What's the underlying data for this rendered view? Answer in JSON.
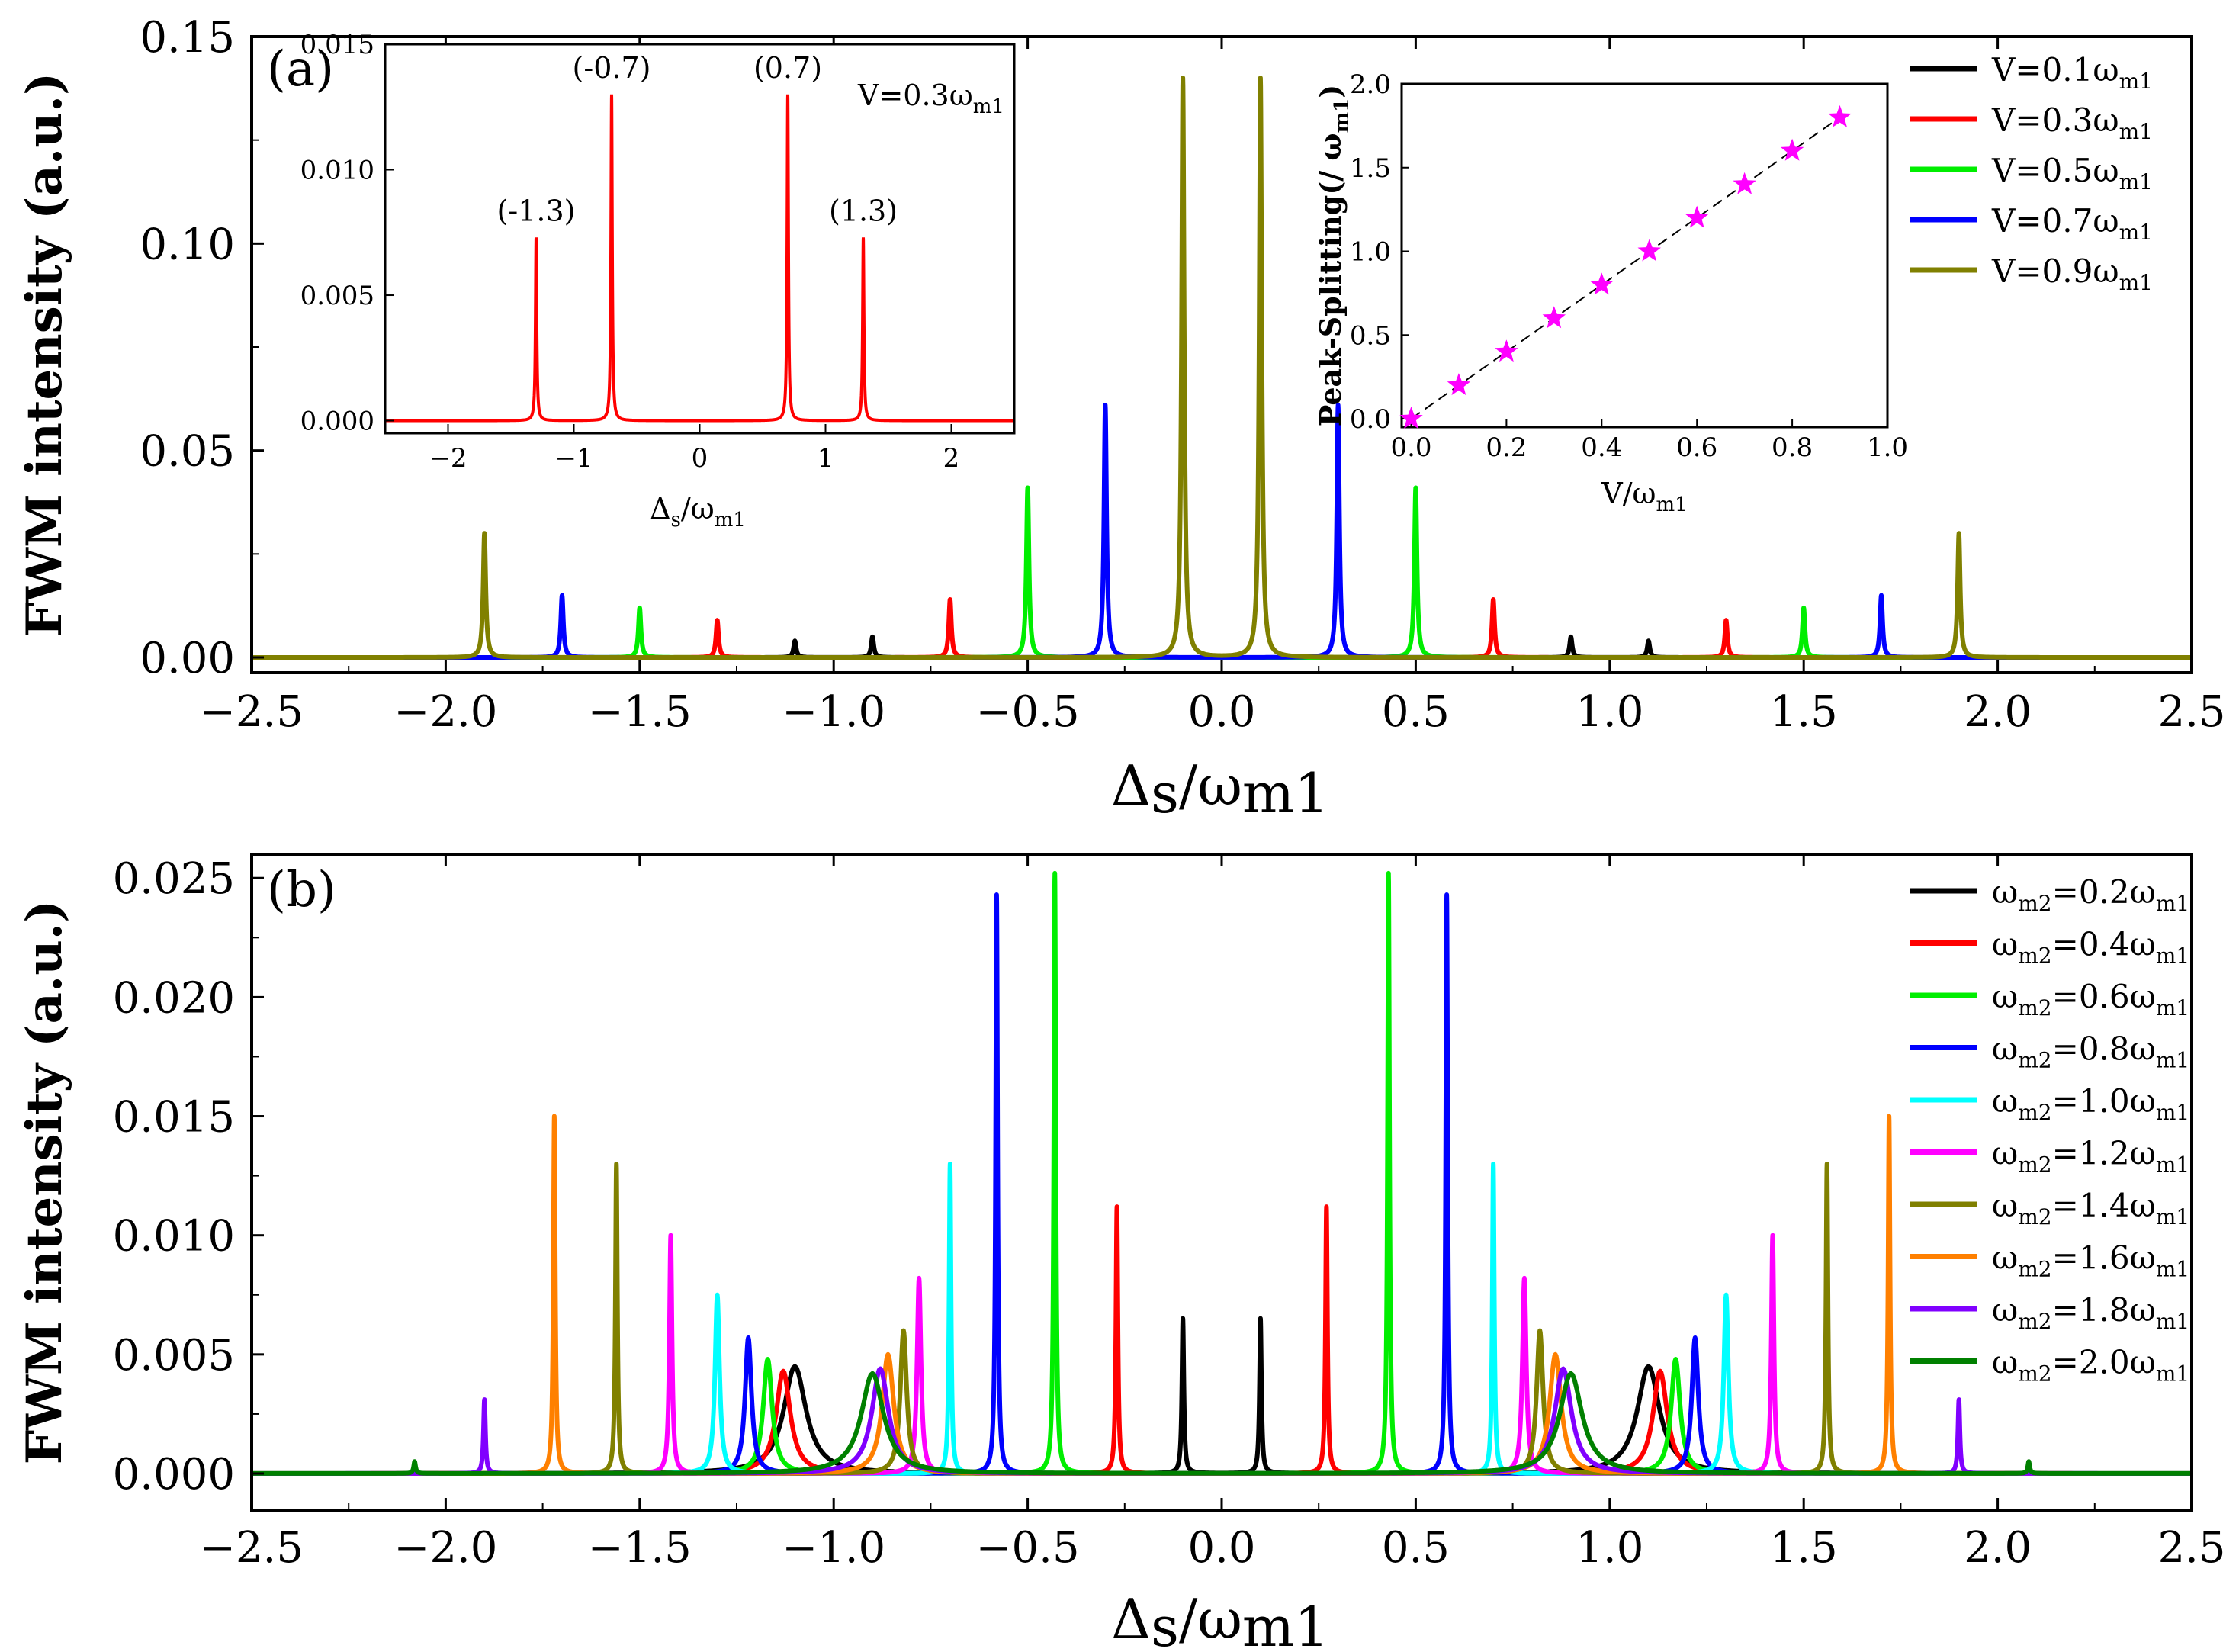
{
  "chart_data": [
    {
      "panel_label": "(a)",
      "type": "line",
      "title": "",
      "xlabel": {
        "main": "Δ",
        "sub1": "s",
        "mid": "/ω",
        "sub2": "m1"
      },
      "ylabel": "FWM intensity (a.u.)",
      "xlim": [
        -2.5,
        2.5
      ],
      "ylim": [
        0,
        0.15
      ],
      "xticks": [
        "-2.5",
        "-2.0",
        "-1.5",
        "-1.0",
        "-0.5",
        "0.0",
        "0.5",
        "1.0",
        "1.5",
        "2.0",
        "2.5"
      ],
      "yticks": [
        "0.00",
        "0.05",
        "0.10",
        "0.15"
      ],
      "legend_position": "top-right",
      "series": [
        {
          "name": "V=0.1ω_m1",
          "label_main": "V=0.1ω",
          "label_sub": "m1",
          "color": "#000000",
          "peaks": [
            {
              "x": -1.1,
              "y": 0.004
            },
            {
              "x": -0.9,
              "y": 0.005
            },
            {
              "x": 0.9,
              "y": 0.005
            },
            {
              "x": 1.1,
              "y": 0.004
            }
          ]
        },
        {
          "name": "V=0.3ω_m1",
          "label_main": "V=0.3ω",
          "label_sub": "m1",
          "color": "#ff0000",
          "peaks": [
            {
              "x": -1.3,
              "y": 0.009
            },
            {
              "x": -0.7,
              "y": 0.014
            },
            {
              "x": 0.7,
              "y": 0.014
            },
            {
              "x": 1.3,
              "y": 0.009
            }
          ]
        },
        {
          "name": "V=0.5ω_m1",
          "label_main": "V=0.5ω",
          "label_sub": "m1",
          "color": "#00ee00",
          "peaks": [
            {
              "x": -1.5,
              "y": 0.012
            },
            {
              "x": -0.5,
              "y": 0.041
            },
            {
              "x": 0.5,
              "y": 0.041
            },
            {
              "x": 1.5,
              "y": 0.012
            }
          ]
        },
        {
          "name": "V=0.7ω_m1",
          "label_main": "V=0.7ω",
          "label_sub": "m1",
          "color": "#0000ff",
          "peaks": [
            {
              "x": -1.7,
              "y": 0.015
            },
            {
              "x": -0.3,
              "y": 0.061
            },
            {
              "x": 0.3,
              "y": 0.061
            },
            {
              "x": 1.7,
              "y": 0.015
            }
          ]
        },
        {
          "name": "V=0.9ω_m1",
          "label_main": "V=0.9ω",
          "label_sub": "m1",
          "color": "#808000",
          "peaks": [
            {
              "x": -1.9,
              "y": 0.03
            },
            {
              "x": -0.1,
              "y": 0.14
            },
            {
              "x": 0.1,
              "y": 0.14
            },
            {
              "x": 1.9,
              "y": 0.03
            }
          ]
        }
      ],
      "insets": [
        {
          "type": "line",
          "xlabel": {
            "main": "Δ",
            "sub1": "s",
            "mid": "/ω",
            "sub2": "m1"
          },
          "xlim": [
            -2.5,
            2.5
          ],
          "ylim": [
            -0.0005,
            0.015
          ],
          "xticks": [
            "-2",
            "-1",
            "0",
            "1",
            "2"
          ],
          "yticks": [
            "0.000",
            "0.005",
            "0.010",
            "0.015"
          ],
          "annotation_main": "V=0.3ω",
          "annotation_sub": "m1",
          "color": "#ff0000",
          "peaks": [
            {
              "x": -1.3,
              "y": 0.0073,
              "label": "(-1.3)"
            },
            {
              "x": -0.7,
              "y": 0.013,
              "label": "(-0.7)"
            },
            {
              "x": 0.7,
              "y": 0.013,
              "label": "(0.7)"
            },
            {
              "x": 1.3,
              "y": 0.0073,
              "label": "(1.3)"
            }
          ]
        },
        {
          "type": "scatter",
          "xlabel": {
            "main": "V/ω",
            "sub": "m1"
          },
          "ylabel": {
            "main": "Peak-Splitting(/ ω",
            "sub": "m1",
            "end": ")"
          },
          "xlim": [
            -0.02,
            1.0
          ],
          "ylim": [
            -0.05,
            2.0
          ],
          "xticks": [
            "0.0",
            "0.2",
            "0.4",
            "0.6",
            "0.8",
            "1.0"
          ],
          "yticks": [
            "0.0",
            "0.5",
            "1.0",
            "1.5",
            "2.0"
          ],
          "marker_color": "#ff00ff",
          "line": "dashed",
          "x": [
            0.0,
            0.1,
            0.2,
            0.3,
            0.4,
            0.5,
            0.6,
            0.7,
            0.8,
            0.9
          ],
          "y": [
            0.0,
            0.2,
            0.4,
            0.6,
            0.8,
            1.0,
            1.2,
            1.4,
            1.6,
            1.8
          ]
        }
      ]
    },
    {
      "panel_label": "(b)",
      "type": "line",
      "title": "",
      "xlabel": {
        "main": "Δ",
        "sub1": "s",
        "mid": "/ω",
        "sub2": "m1"
      },
      "ylabel": "FWM intensity (a.u.)",
      "xlim": [
        -2.5,
        2.5
      ],
      "ylim": [
        0,
        0.026
      ],
      "xticks": [
        "-2.5",
        "-2.0",
        "-1.5",
        "-1.0",
        "-0.5",
        "0.0",
        "0.5",
        "1.0",
        "1.5",
        "2.0",
        "2.5"
      ],
      "yticks": [
        "0.000",
        "0.005",
        "0.010",
        "0.015",
        "0.020",
        "0.025"
      ],
      "legend_position": "top-right",
      "series": [
        {
          "name": "ω_m2=0.2ω_m1",
          "label_value": "=0.2ω",
          "color": "#000000",
          "peaks": [
            {
              "x": -1.1,
              "y": 0.0045,
              "w": 0.035
            },
            {
              "x": -0.1,
              "y": 0.0065,
              "w": 0.003
            },
            {
              "x": 0.1,
              "y": 0.0065,
              "w": 0.003
            },
            {
              "x": 1.1,
              "y": 0.0045,
              "w": 0.035
            }
          ]
        },
        {
          "name": "ω_m2=0.4ω_m1",
          "label_value": "=0.4ω",
          "color": "#ff0000",
          "peaks": [
            {
              "x": -1.13,
              "y": 0.0043,
              "w": 0.022
            },
            {
              "x": -0.27,
              "y": 0.0112,
              "w": 0.003
            },
            {
              "x": 0.27,
              "y": 0.0112,
              "w": 0.003
            },
            {
              "x": 1.13,
              "y": 0.0043,
              "w": 0.022
            }
          ]
        },
        {
          "name": "ω_m2=0.6ω_m1",
          "label_value": "=0.6ω",
          "color": "#00ee00",
          "peaks": [
            {
              "x": -1.17,
              "y": 0.0048,
              "w": 0.014
            },
            {
              "x": -0.43,
              "y": 0.0252,
              "w": 0.003
            },
            {
              "x": 0.43,
              "y": 0.0252,
              "w": 0.003
            },
            {
              "x": 1.17,
              "y": 0.0048,
              "w": 0.014
            }
          ]
        },
        {
          "name": "ω_m2=0.8ω_m1",
          "label_value": "=0.8ω",
          "color": "#0000ff",
          "peaks": [
            {
              "x": -1.22,
              "y": 0.0057,
              "w": 0.01
            },
            {
              "x": -0.58,
              "y": 0.0243,
              "w": 0.003
            },
            {
              "x": 0.58,
              "y": 0.0243,
              "w": 0.003
            },
            {
              "x": 1.22,
              "y": 0.0057,
              "w": 0.01
            }
          ]
        },
        {
          "name": "ω_m2=1.0ω_m1",
          "label_value": "=1.0ω",
          "color": "#00ffff",
          "peaks": [
            {
              "x": -1.3,
              "y": 0.0075,
              "w": 0.007
            },
            {
              "x": -0.7,
              "y": 0.013,
              "w": 0.003
            },
            {
              "x": 0.7,
              "y": 0.013,
              "w": 0.003
            },
            {
              "x": 1.3,
              "y": 0.0075,
              "w": 0.007
            }
          ]
        },
        {
          "name": "ω_m2=1.2ω_m1",
          "label_value": "=1.2ω",
          "color": "#ff00ff",
          "peaks": [
            {
              "x": -1.42,
              "y": 0.01,
              "w": 0.004
            },
            {
              "x": -0.78,
              "y": 0.0082,
              "w": 0.006
            },
            {
              "x": 0.78,
              "y": 0.0082,
              "w": 0.006
            },
            {
              "x": 1.42,
              "y": 0.01,
              "w": 0.004
            }
          ]
        },
        {
          "name": "ω_m2=1.4ω_m1",
          "label_value": "=1.4ω",
          "color": "#808000",
          "peaks": [
            {
              "x": -1.56,
              "y": 0.013,
              "w": 0.003
            },
            {
              "x": -0.82,
              "y": 0.006,
              "w": 0.01
            },
            {
              "x": 0.82,
              "y": 0.006,
              "w": 0.01
            },
            {
              "x": 1.56,
              "y": 0.013,
              "w": 0.003
            }
          ]
        },
        {
          "name": "ω_m2=1.6ω_m1",
          "label_value": "=1.6ω",
          "color": "#ff8000",
          "peaks": [
            {
              "x": -1.72,
              "y": 0.015,
              "w": 0.003
            },
            {
              "x": -0.86,
              "y": 0.005,
              "w": 0.018
            },
            {
              "x": 0.86,
              "y": 0.005,
              "w": 0.018
            },
            {
              "x": 1.72,
              "y": 0.015,
              "w": 0.003
            }
          ]
        },
        {
          "name": "ω_m2=1.8ω_m1",
          "label_value": "=1.8ω",
          "color": "#8000ff",
          "peaks": [
            {
              "x": -1.9,
              "y": 0.0031,
              "w": 0.003
            },
            {
              "x": -0.88,
              "y": 0.0044,
              "w": 0.026
            },
            {
              "x": 0.88,
              "y": 0.0044,
              "w": 0.026
            },
            {
              "x": 1.9,
              "y": 0.0031,
              "w": 0.003
            }
          ]
        },
        {
          "name": "ω_m2=2.0ω_m1",
          "label_value": "=2.0ω",
          "color": "#008000",
          "peaks": [
            {
              "x": -2.08,
              "y": 0.0005,
              "w": 0.003
            },
            {
              "x": -0.9,
              "y": 0.0042,
              "w": 0.035
            },
            {
              "x": 0.9,
              "y": 0.0042,
              "w": 0.035
            },
            {
              "x": 2.08,
              "y": 0.0005,
              "w": 0.003
            }
          ]
        }
      ]
    }
  ]
}
